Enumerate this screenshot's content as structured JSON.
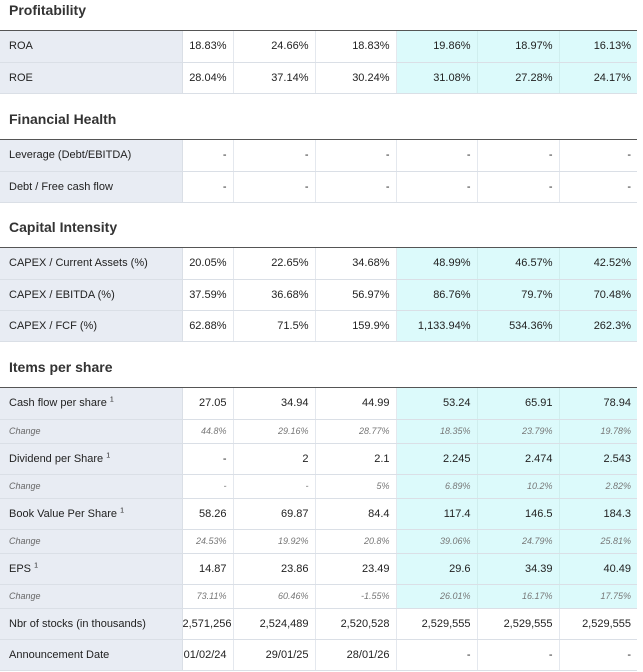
{
  "sections": {
    "profitability": {
      "title": "Profitability",
      "rows": [
        {
          "label": "ROA",
          "values": [
            "18.83%",
            "24.66%",
            "18.83%",
            "19.86%",
            "18.97%",
            "16.13%"
          ]
        },
        {
          "label": "ROE",
          "values": [
            "28.04%",
            "37.14%",
            "30.24%",
            "31.08%",
            "27.28%",
            "24.17%"
          ]
        }
      ]
    },
    "financial_health": {
      "title": "Financial Health",
      "rows": [
        {
          "label": "Leverage (Debt/EBITDA)",
          "values": [
            "-",
            "-",
            "-",
            "-",
            "-",
            "-"
          ]
        },
        {
          "label": "Debt / Free cash flow",
          "values": [
            "-",
            "-",
            "-",
            "-",
            "-",
            "-"
          ]
        }
      ]
    },
    "capital_intensity": {
      "title": "Capital Intensity",
      "rows": [
        {
          "label": "CAPEX / Current Assets (%)",
          "values": [
            "20.05%",
            "22.65%",
            "34.68%",
            "48.99%",
            "46.57%",
            "42.52%"
          ]
        },
        {
          "label": "CAPEX / EBITDA (%)",
          "values": [
            "37.59%",
            "36.68%",
            "56.97%",
            "86.76%",
            "79.7%",
            "70.48%"
          ]
        },
        {
          "label": "CAPEX / FCF (%)",
          "values": [
            "62.88%",
            "71.5%",
            "159.9%",
            "1,133.94%",
            "534.36%",
            "262.3%"
          ]
        }
      ]
    },
    "items_per_share": {
      "title": "Items per share",
      "rows": [
        {
          "label": "Cash flow per share",
          "footnote": "1",
          "values": [
            "27.05",
            "34.94",
            "44.99",
            "53.24",
            "65.91",
            "78.94"
          ]
        },
        {
          "label": "Change",
          "sub": true,
          "values": [
            "44.8%",
            "29.16%",
            "28.77%",
            "18.35%",
            "23.79%",
            "19.78%"
          ]
        },
        {
          "label": "Dividend per Share",
          "footnote": "1",
          "values": [
            "-",
            "2",
            "2.1",
            "2.245",
            "2.474",
            "2.543"
          ]
        },
        {
          "label": "Change",
          "sub": true,
          "values": [
            "-",
            "-",
            "5%",
            "6.89%",
            "10.2%",
            "2.82%"
          ]
        },
        {
          "label": "Book Value Per Share",
          "footnote": "1",
          "values": [
            "58.26",
            "69.87",
            "84.4",
            "117.4",
            "146.5",
            "184.3"
          ]
        },
        {
          "label": "Change",
          "sub": true,
          "values": [
            "24.53%",
            "19.92%",
            "20.8%",
            "39.06%",
            "24.79%",
            "25.81%"
          ]
        },
        {
          "label": "EPS",
          "footnote": "1",
          "values": [
            "14.87",
            "23.86",
            "23.49",
            "29.6",
            "34.39",
            "40.49"
          ]
        },
        {
          "label": "Change",
          "sub": true,
          "values": [
            "73.11%",
            "60.46%",
            "-1.55%",
            "26.01%",
            "16.17%",
            "17.75%"
          ]
        },
        {
          "label": "Nbr of stocks (in thousands)",
          "values": [
            "2,571,256",
            "2,524,489",
            "2,520,528",
            "2,529,555",
            "2,529,555",
            "2,529,555"
          ]
        },
        {
          "label": "Announcement Date",
          "values": [
            "01/02/24",
            "29/01/25",
            "28/01/26",
            "-",
            "-",
            "-"
          ]
        }
      ]
    }
  },
  "colors": {
    "label_bg": "#e8ecf3",
    "estimate_bg": "#dcfafb"
  }
}
